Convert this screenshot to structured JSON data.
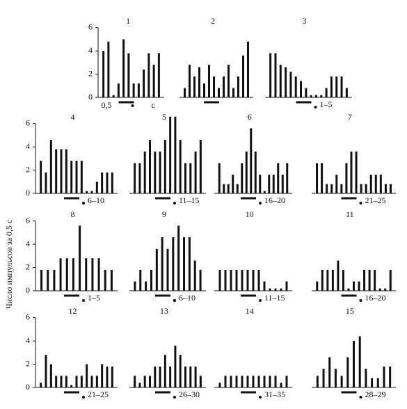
{
  "y_label": "Число импульсов за 0,5 с",
  "chart_data": [
    {
      "type": "bar",
      "title": "1",
      "values": [
        4,
        4.8,
        0.2,
        1.2,
        5,
        3.8,
        1.2,
        1.2,
        2.4,
        3.8,
        2.8,
        3.8
      ],
      "ylim": [
        0,
        7
      ],
      "yticks": [
        0,
        2,
        4,
        6
      ],
      "x_labels": [
        "0,5",
        "с"
      ]
    },
    {
      "type": "bar",
      "title": "2",
      "values": [
        0.8,
        2.8,
        1.8,
        2.6,
        1.2,
        2.8,
        1.8,
        0.8,
        1.8,
        2.8,
        0.8,
        1.8,
        3.6,
        4.8
      ],
      "ylim": [
        0,
        7
      ]
    },
    {
      "type": "bar",
      "title": "3",
      "values": [
        3.8,
        3.8,
        2.8,
        2.6,
        2.2,
        1.8,
        1.4,
        0.8,
        0.2,
        0.2,
        0.2,
        0.8,
        1.8,
        1.8,
        1.8,
        0.8
      ],
      "ylim": [
        0,
        7
      ],
      "x_label": "1–5"
    },
    {
      "type": "bar",
      "title": "4",
      "values": [
        2.8,
        1.8,
        4.6,
        3.8,
        3.8,
        3.8,
        2.8,
        2.8,
        2.8,
        0.2,
        0.2,
        1,
        1.8,
        1.8,
        1.8
      ],
      "ylim": [
        0,
        7
      ],
      "yticks": [
        0,
        2,
        4,
        6
      ],
      "x_label": "6–10"
    },
    {
      "type": "bar",
      "title": "5",
      "values": [
        2.6,
        2.6,
        3.6,
        4.6,
        3.6,
        3.6,
        4.6,
        6.6,
        6.6,
        4.6,
        2.6,
        2.6,
        3.6,
        4.6
      ],
      "ylim": [
        0,
        7
      ],
      "x_label": "11–15"
    },
    {
      "type": "bar",
      "title": "6",
      "values": [
        2.6,
        0.8,
        0.8,
        1.6,
        0.8,
        2.6,
        3.6,
        5.6,
        3.6,
        1.6,
        0.2,
        1.6,
        1.6,
        2.6,
        1.6,
        2.6
      ],
      "ylim": [
        0,
        7
      ],
      "x_label": "16–20"
    },
    {
      "type": "bar",
      "title": "7",
      "values": [
        2.6,
        2.6,
        0.8,
        0.8,
        1.6,
        0.8,
        2.6,
        3.6,
        3.6,
        0.8,
        0.8,
        1.6,
        1.6,
        1.6,
        0.8,
        0.8
      ],
      "ylim": [
        0,
        7
      ],
      "x_label": "21–25"
    },
    {
      "type": "bar",
      "title": "8",
      "values": [
        1.8,
        1.8,
        1.8,
        2.8,
        2.8,
        2.8,
        5.6,
        2.8,
        2.8,
        2.8,
        1.8,
        1.8
      ],
      "ylim": [
        0,
        7
      ],
      "yticks": [
        0,
        2,
        4,
        6
      ],
      "x_label": "1–5"
    },
    {
      "type": "bar",
      "title": "9",
      "values": [
        0.8,
        1.8,
        0.8,
        1.8,
        3.6,
        4.6,
        3.6,
        4.6,
        5.6,
        4.6,
        4.6,
        2.6,
        1.8
      ],
      "ylim": [
        0,
        7
      ],
      "x_label": "6–10"
    },
    {
      "type": "bar",
      "title": "10",
      "values": [
        1.8,
        1.8,
        1.8,
        1.8,
        1.8,
        1.8,
        1.8,
        1.8,
        0.8,
        0.2,
        0.2,
        0.2,
        0.8
      ],
      "ylim": [
        0,
        7
      ],
      "x_label": "11–15"
    },
    {
      "type": "bar",
      "title": "11",
      "values": [
        0.8,
        1.8,
        1.8,
        1.8,
        2.6,
        1.8,
        0.2,
        0.8,
        0.8,
        1.8,
        1.8,
        1.8,
        0.2,
        0.2,
        1.8
      ],
      "ylim": [
        0,
        7
      ],
      "x_label": "16–20"
    },
    {
      "type": "bar",
      "title": "12",
      "values": [
        0.4,
        2.8,
        2,
        1,
        1,
        1,
        0.2,
        1,
        1,
        2,
        1,
        1,
        2,
        1.8,
        1.8
      ],
      "ylim": [
        0,
        7
      ],
      "yticks": [
        0,
        2,
        4,
        6
      ],
      "x_label": "21–25"
    },
    {
      "type": "bar",
      "title": "13",
      "values": [
        1,
        0.4,
        1,
        1,
        1.8,
        1.8,
        2.8,
        1.8,
        3.6,
        2.8,
        1.8,
        1.8,
        1.8,
        1
      ],
      "ylim": [
        0,
        7
      ],
      "x_label": "26–30"
    },
    {
      "type": "bar",
      "title": "14",
      "values": [
        0.4,
        1,
        1,
        1,
        1,
        1,
        1,
        1,
        1,
        1,
        1,
        0.4,
        1
      ],
      "ylim": [
        0,
        7
      ],
      "x_label": "31–35"
    },
    {
      "type": "bar",
      "title": "15",
      "values": [
        1,
        1.6,
        2.6,
        1.6,
        1,
        2.6,
        4,
        4.4,
        1.6,
        0.8,
        0.8,
        1.8,
        1.8
      ],
      "ylim": [
        0,
        7
      ],
      "x_label": "28–29"
    }
  ]
}
